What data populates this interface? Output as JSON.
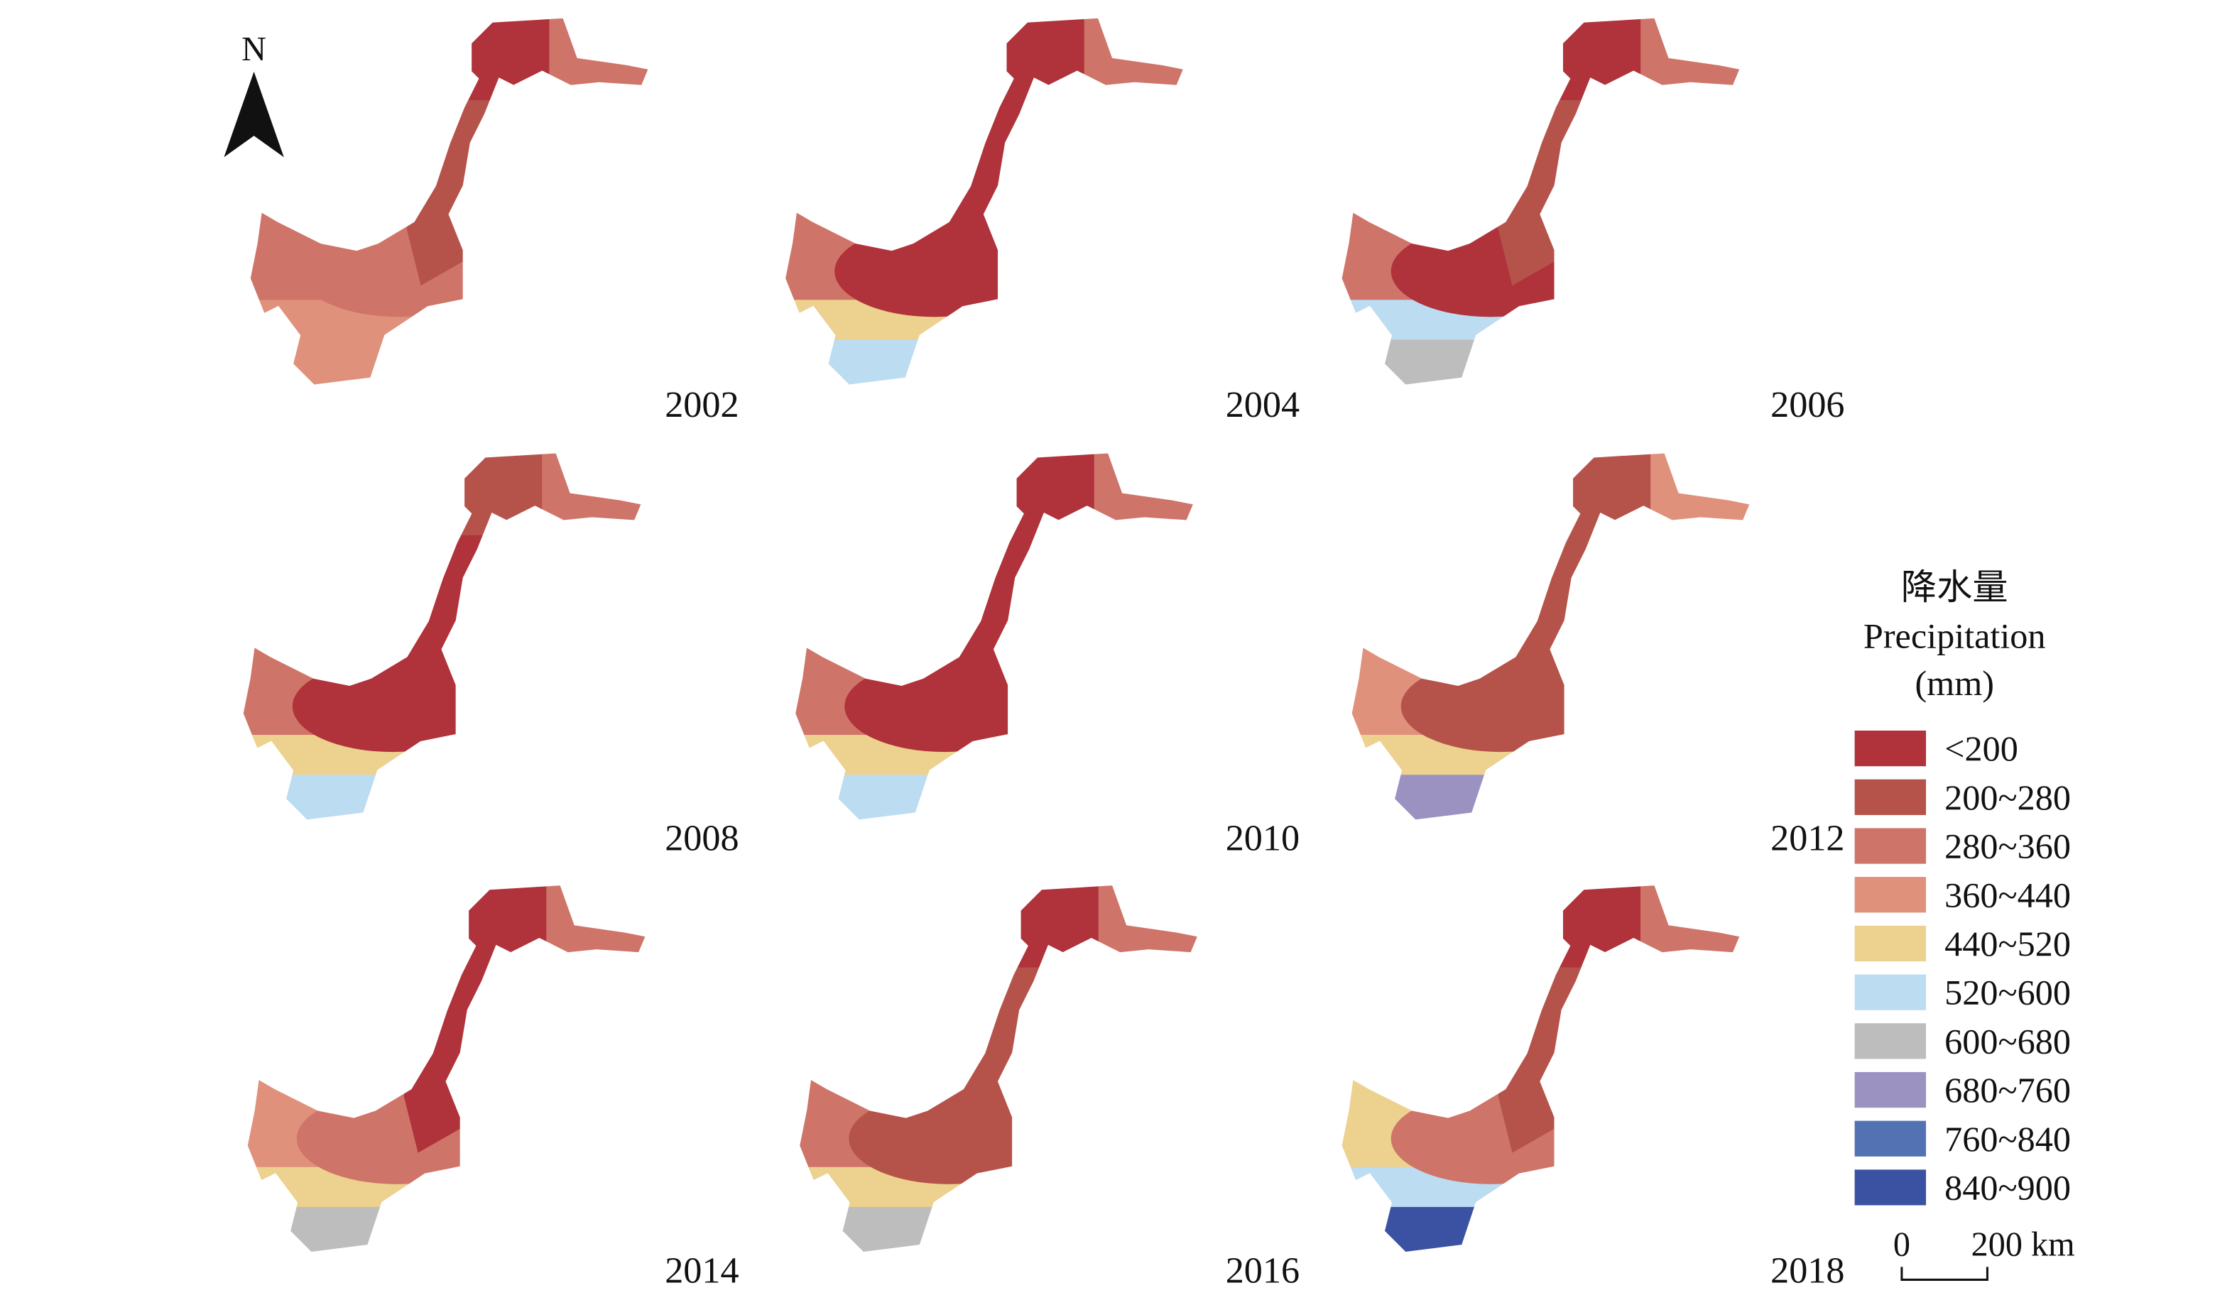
{
  "north": "N",
  "panels": [
    {
      "year": "2002"
    },
    {
      "year": "2004"
    },
    {
      "year": "2006"
    },
    {
      "year": "2008"
    },
    {
      "year": "2010"
    },
    {
      "year": "2012"
    },
    {
      "year": "2014"
    },
    {
      "year": "2016"
    },
    {
      "year": "2018"
    }
  ],
  "legend": {
    "title": [
      "降水量",
      "Precipitation",
      "(mm)"
    ],
    "items": [
      {
        "label": "<200",
        "color": "#b0323a"
      },
      {
        "label": "200~280",
        "color": "#b5534b"
      },
      {
        "label": "280~360",
        "color": "#cf7469"
      },
      {
        "label": "360~440",
        "color": "#df917b"
      },
      {
        "label": "440~520",
        "color": "#edd18e"
      },
      {
        "label": "520~600",
        "color": "#bcdcf2"
      },
      {
        "label": "600~680",
        "color": "#bdbdbd"
      },
      {
        "label": "680~760",
        "color": "#9b92c2"
      },
      {
        "label": "760~840",
        "color": "#5272b4"
      },
      {
        "label": "840~900",
        "color": "#3b52a3"
      }
    ]
  },
  "scale_bar": {
    "start": "0",
    "end": "200 km"
  }
}
